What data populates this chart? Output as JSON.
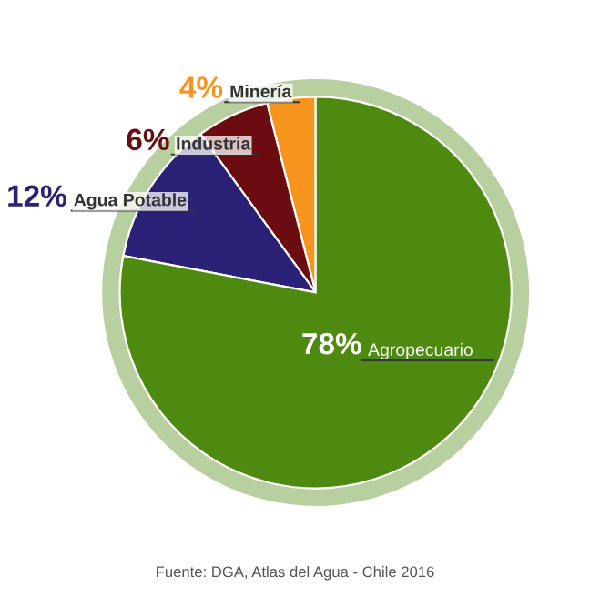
{
  "chart_data": {
    "type": "pie",
    "categories": [
      "Minería",
      "Industria",
      "Agua Potable",
      "Agropecuario"
    ],
    "values": [
      4,
      6,
      12,
      78
    ],
    "colors": [
      "#f7941d",
      "#6b0c10",
      "#2b2277",
      "#4e8a0f"
    ],
    "value_labels": [
      "4%",
      "6%",
      "12%",
      "78%"
    ],
    "annotations": [
      "Fuente: DGA, Atlas del Agua - Chile 2016"
    ]
  }
}
